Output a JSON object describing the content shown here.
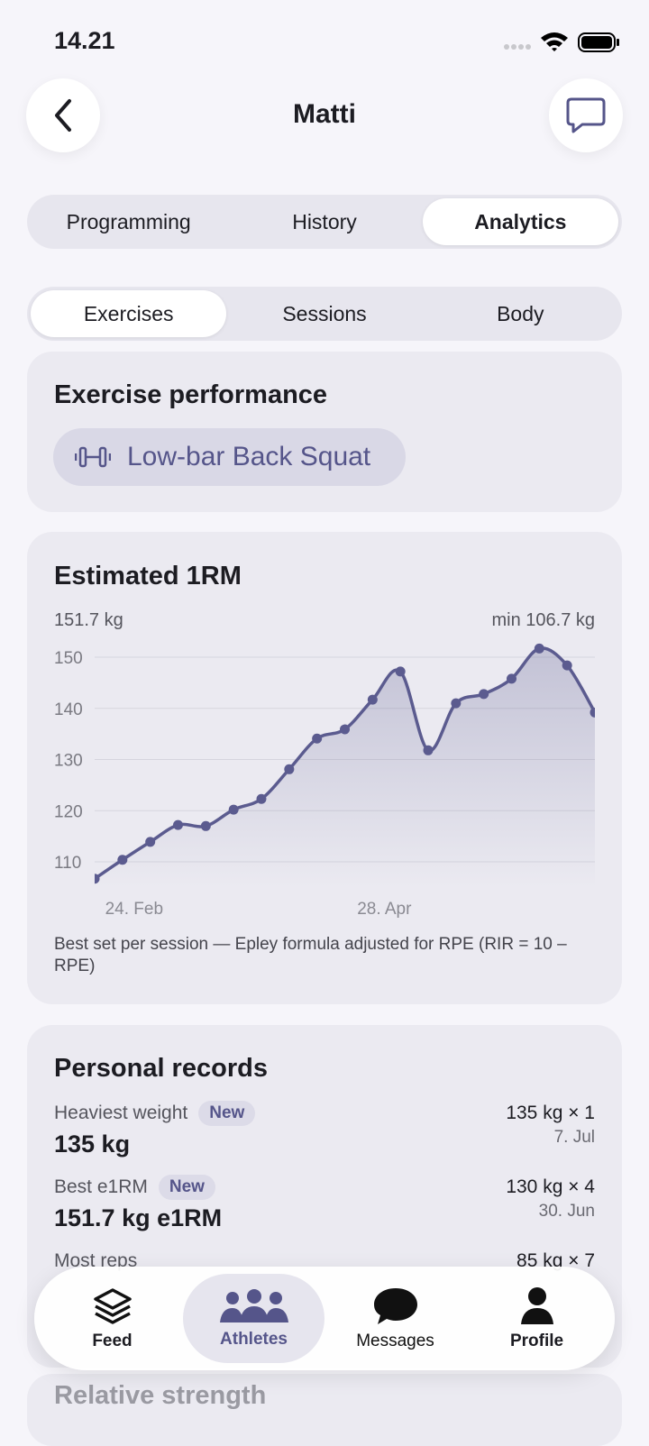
{
  "status_bar": {
    "time": "14.21"
  },
  "header": {
    "title": "Matti"
  },
  "tabs": [
    "Programming",
    "History",
    "Analytics"
  ],
  "subtabs": [
    "Exercises",
    "Sessions",
    "Body"
  ],
  "exercise_card": {
    "title": "Exercise performance",
    "exercise": "Low-bar Back Squat"
  },
  "chart_data": {
    "type": "line",
    "title": "Estimated 1RM",
    "max_label": "151.7 kg",
    "min_label": "min 106.7 kg",
    "categories": [
      null,
      "24. Feb",
      null,
      null,
      null,
      null,
      null,
      null,
      null,
      null,
      "28. Apr",
      null,
      null,
      null,
      null,
      null,
      null,
      null,
      null
    ],
    "values": [
      106.7,
      110.4,
      113.9,
      117.2,
      117.0,
      120.2,
      122.3,
      128.1,
      134.1,
      135.9,
      141.7,
      147.2,
      131.8,
      141.0,
      142.8,
      145.8,
      151.7,
      148.4,
      139.2
    ],
    "color": "#5b5b8f",
    "ylim": [
      105,
      153
    ],
    "yticks": [
      110,
      120,
      130,
      140,
      150
    ],
    "grid": true,
    "caption": "Best set per session — Epley formula adjusted for RPE (RIR = 10 – RPE)"
  },
  "records": {
    "title": "Personal records",
    "items": [
      {
        "label": "Heaviest weight",
        "badge": "New",
        "value": "135 kg",
        "detail": "135 kg × 1",
        "date": "7. Jul"
      },
      {
        "label": "Best e1RM",
        "badge": "New",
        "value": "151.7 kg e1RM",
        "detail": "130 kg × 4",
        "date": "30. Jun"
      },
      {
        "label": "Most reps",
        "detail": "85 kg × 7"
      }
    ]
  },
  "next_section": {
    "title": "Relative strength"
  },
  "nav": [
    "Feed",
    "Athletes",
    "Messages",
    "Profile"
  ]
}
